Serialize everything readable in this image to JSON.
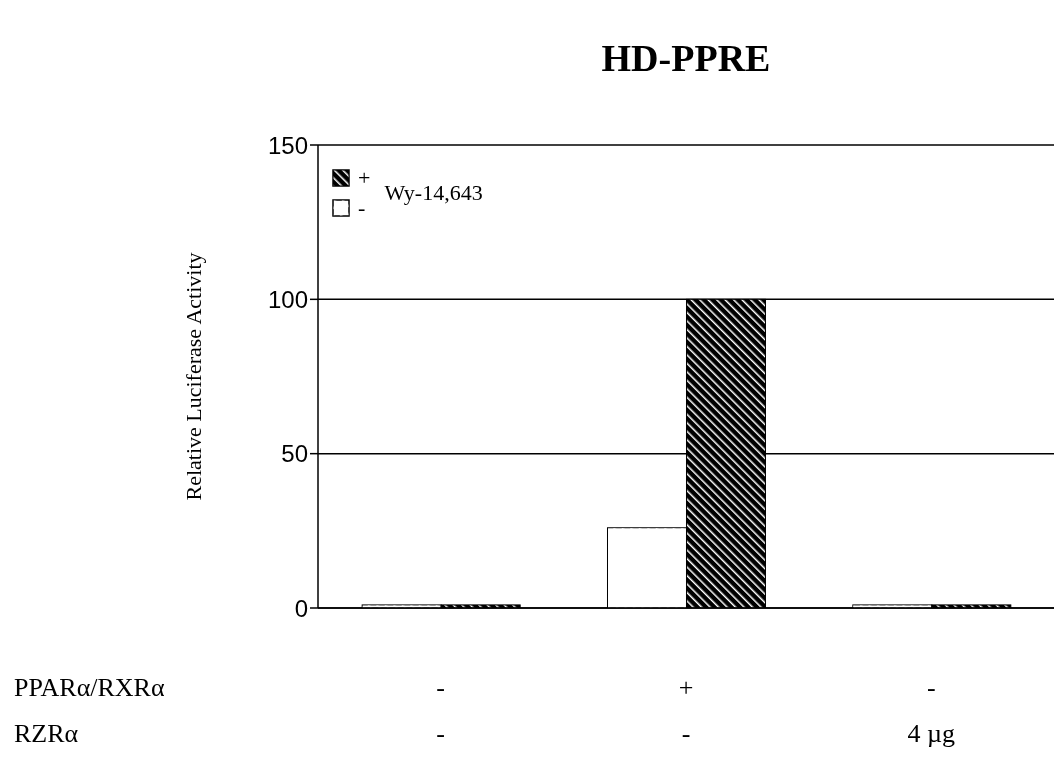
{
  "chart_data": {
    "type": "bar",
    "title": "HD-PPRE",
    "ylabel": "Relative Luciferase Activity",
    "legend_title": "Wy-14,643",
    "categories": [
      null,
      null,
      null
    ],
    "series": [
      {
        "name": "-",
        "color": "#ffffff",
        "values": [
          1,
          26,
          1
        ]
      },
      {
        "name": "+",
        "color": "#000000",
        "values": [
          1,
          100,
          1
        ]
      }
    ],
    "ylim": [
      0,
      150
    ],
    "yticks": [
      0,
      50,
      100,
      150
    ],
    "grid": "y",
    "legend": "top left",
    "annotations": [
      "PPARα/RXRα",
      "-",
      "+",
      "-",
      "RZRα",
      "-",
      "-",
      "4 µg"
    ]
  }
}
